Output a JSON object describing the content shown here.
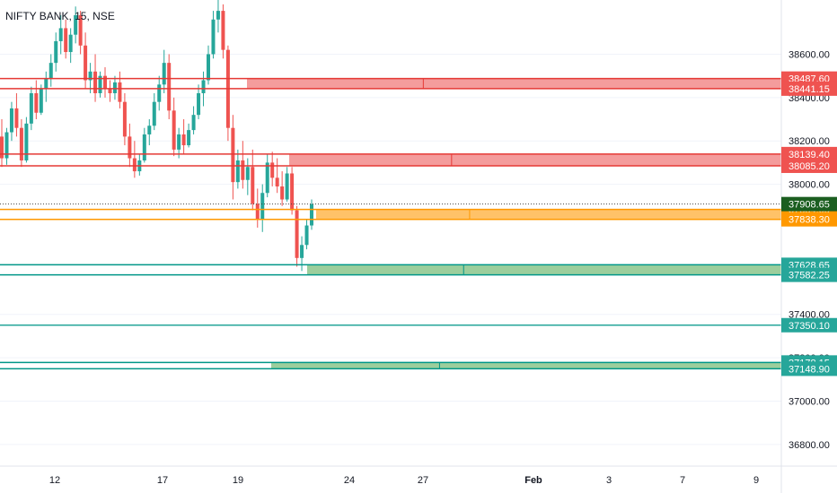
{
  "chart_data": {
    "type": "candlestick",
    "title": "NIFTY BANK, 15, NSE",
    "ylim": [
      36700,
      38850
    ],
    "y_ticks": [
      {
        "value": 38600,
        "label": "38600.00"
      },
      {
        "value": 38400,
        "label": "38400.00"
      },
      {
        "value": 38200,
        "label": "38200.00"
      },
      {
        "value": 38000,
        "label": "38000.00"
      },
      {
        "value": 37400,
        "label": "37400.00"
      },
      {
        "value": 37200,
        "label": "37200.00"
      },
      {
        "value": 37000,
        "label": "37000.00"
      },
      {
        "value": 36800,
        "label": "36800.00"
      }
    ],
    "x_ticks": [
      {
        "label": "12",
        "bold": false
      },
      {
        "label": "17",
        "bold": false
      },
      {
        "label": "19",
        "bold": false
      },
      {
        "label": "24",
        "bold": false
      },
      {
        "label": "27",
        "bold": false
      },
      {
        "label": "Feb",
        "bold": true
      },
      {
        "label": "3",
        "bold": false
      },
      {
        "label": "7",
        "bold": false
      },
      {
        "label": "9",
        "bold": false
      }
    ],
    "current_price": {
      "value": 37908.65,
      "label": "37908.65",
      "color": "#1b5e20"
    },
    "zones": [
      {
        "top": 38487.6,
        "bottom": 38441.15,
        "top_label": "38487.60",
        "bottom_label": "38441.15",
        "kind": "supply",
        "line_color": "#e53935",
        "fill_color": "#f28b8b",
        "badge_color": "#ef5350"
      },
      {
        "top": 38139.4,
        "bottom": 38085.2,
        "top_label": "38139.40",
        "bottom_label": "38085.20",
        "kind": "supply",
        "line_color": "#e53935",
        "fill_color": "#f28b8b",
        "badge_color": "#ef5350"
      },
      {
        "top": 37884.05,
        "bottom": 37838.3,
        "top_label": "37884.05",
        "bottom_label": "37838.30",
        "kind": "pivot",
        "line_color": "#ff9800",
        "fill_color": "#ffb74d",
        "badge_color": "#ff9800"
      },
      {
        "top": 37628.65,
        "bottom": 37582.25,
        "top_label": "37628.65",
        "bottom_label": "37582.25",
        "kind": "demand",
        "line_color": "#009688",
        "fill_color": "#8bc58b",
        "badge_color": "#26a69a"
      },
      {
        "top": 37178.15,
        "bottom": 37148.9,
        "top_label": "37178.15",
        "bottom_label": "37148.90",
        "kind": "demand",
        "line_color": "#009688",
        "fill_color": "#8bc58b",
        "badge_color": "#26a69a"
      }
    ],
    "lines": [
      {
        "value": 37350.1,
        "label": "37350.10",
        "color": "#26a69a"
      }
    ],
    "colors": {
      "up": "#26a69a",
      "down": "#ef5350",
      "grid": "#f0f3fa",
      "axis_text": "#131722"
    },
    "series": [
      {
        "o": 38220,
        "h": 38300,
        "l": 38080,
        "c": 38120
      },
      {
        "o": 38120,
        "h": 38260,
        "l": 38090,
        "c": 38240
      },
      {
        "o": 38240,
        "h": 38380,
        "l": 38200,
        "c": 38350
      },
      {
        "o": 38350,
        "h": 38420,
        "l": 38220,
        "c": 38260
      },
      {
        "o": 38260,
        "h": 38300,
        "l": 38080,
        "c": 38110
      },
      {
        "o": 38110,
        "h": 38310,
        "l": 38100,
        "c": 38280
      },
      {
        "o": 38280,
        "h": 38450,
        "l": 38250,
        "c": 38420
      },
      {
        "o": 38420,
        "h": 38480,
        "l": 38300,
        "c": 38330
      },
      {
        "o": 38330,
        "h": 38460,
        "l": 38320,
        "c": 38440
      },
      {
        "o": 38440,
        "h": 38520,
        "l": 38380,
        "c": 38490
      },
      {
        "o": 38490,
        "h": 38600,
        "l": 38450,
        "c": 38560
      },
      {
        "o": 38560,
        "h": 38700,
        "l": 38520,
        "c": 38660
      },
      {
        "o": 38660,
        "h": 38780,
        "l": 38600,
        "c": 38720
      },
      {
        "o": 38720,
        "h": 38760,
        "l": 38580,
        "c": 38610
      },
      {
        "o": 38610,
        "h": 38720,
        "l": 38560,
        "c": 38690
      },
      {
        "o": 38690,
        "h": 38820,
        "l": 38650,
        "c": 38780
      },
      {
        "o": 38780,
        "h": 38800,
        "l": 38600,
        "c": 38640
      },
      {
        "o": 38640,
        "h": 38700,
        "l": 38440,
        "c": 38480
      },
      {
        "o": 38480,
        "h": 38560,
        "l": 38420,
        "c": 38520
      },
      {
        "o": 38520,
        "h": 38600,
        "l": 38380,
        "c": 38420
      },
      {
        "o": 38420,
        "h": 38520,
        "l": 38400,
        "c": 38500
      },
      {
        "o": 38500,
        "h": 38540,
        "l": 38400,
        "c": 38440
      },
      {
        "o": 38440,
        "h": 38480,
        "l": 38380,
        "c": 38420
      },
      {
        "o": 38420,
        "h": 38500,
        "l": 38390,
        "c": 38470
      },
      {
        "o": 38470,
        "h": 38520,
        "l": 38350,
        "c": 38380
      },
      {
        "o": 38380,
        "h": 38420,
        "l": 38180,
        "c": 38220
      },
      {
        "o": 38220,
        "h": 38280,
        "l": 38080,
        "c": 38120
      },
      {
        "o": 38120,
        "h": 38200,
        "l": 38030,
        "c": 38060
      },
      {
        "o": 38060,
        "h": 38140,
        "l": 38040,
        "c": 38110
      },
      {
        "o": 38110,
        "h": 38260,
        "l": 38100,
        "c": 38230
      },
      {
        "o": 38230,
        "h": 38300,
        "l": 38180,
        "c": 38270
      },
      {
        "o": 38270,
        "h": 38420,
        "l": 38250,
        "c": 38380
      },
      {
        "o": 38380,
        "h": 38500,
        "l": 38340,
        "c": 38460
      },
      {
        "o": 38460,
        "h": 38620,
        "l": 38420,
        "c": 38560
      },
      {
        "o": 38560,
        "h": 38600,
        "l": 38300,
        "c": 38340
      },
      {
        "o": 38340,
        "h": 38400,
        "l": 38130,
        "c": 38160
      },
      {
        "o": 38160,
        "h": 38260,
        "l": 38120,
        "c": 38230
      },
      {
        "o": 38230,
        "h": 38300,
        "l": 38140,
        "c": 38180
      },
      {
        "o": 38180,
        "h": 38280,
        "l": 38170,
        "c": 38250
      },
      {
        "o": 38250,
        "h": 38360,
        "l": 38230,
        "c": 38320
      },
      {
        "o": 38320,
        "h": 38460,
        "l": 38300,
        "c": 38420
      },
      {
        "o": 38420,
        "h": 38520,
        "l": 38360,
        "c": 38480
      },
      {
        "o": 38480,
        "h": 38640,
        "l": 38460,
        "c": 38600
      },
      {
        "o": 38600,
        "h": 38800,
        "l": 38580,
        "c": 38760
      },
      {
        "o": 38760,
        "h": 38850,
        "l": 38700,
        "c": 38800
      },
      {
        "o": 38800,
        "h": 38830,
        "l": 38580,
        "c": 38620
      },
      {
        "o": 38620,
        "h": 38640,
        "l": 38200,
        "c": 38260
      },
      {
        "o": 38260,
        "h": 38320,
        "l": 37930,
        "c": 38010
      },
      {
        "o": 38010,
        "h": 38160,
        "l": 37980,
        "c": 38110
      },
      {
        "o": 38110,
        "h": 38200,
        "l": 37980,
        "c": 38020
      },
      {
        "o": 38020,
        "h": 38120,
        "l": 37950,
        "c": 38080
      },
      {
        "o": 38080,
        "h": 38160,
        "l": 37880,
        "c": 37910
      },
      {
        "o": 37910,
        "h": 37980,
        "l": 37800,
        "c": 37840
      },
      {
        "o": 37840,
        "h": 38000,
        "l": 37780,
        "c": 37960
      },
      {
        "o": 37960,
        "h": 38140,
        "l": 37940,
        "c": 38100
      },
      {
        "o": 38100,
        "h": 38150,
        "l": 37990,
        "c": 38030
      },
      {
        "o": 38030,
        "h": 38120,
        "l": 37960,
        "c": 37990
      },
      {
        "o": 37990,
        "h": 38060,
        "l": 37900,
        "c": 37930
      },
      {
        "o": 37930,
        "h": 38080,
        "l": 37920,
        "c": 38050
      },
      {
        "o": 38050,
        "h": 38080,
        "l": 37860,
        "c": 37880
      },
      {
        "o": 37880,
        "h": 37900,
        "l": 37620,
        "c": 37660
      },
      {
        "o": 37660,
        "h": 37760,
        "l": 37600,
        "c": 37720
      },
      {
        "o": 37720,
        "h": 37840,
        "l": 37700,
        "c": 37810
      },
      {
        "o": 37810,
        "h": 37930,
        "l": 37790,
        "c": 37908.65
      }
    ]
  }
}
